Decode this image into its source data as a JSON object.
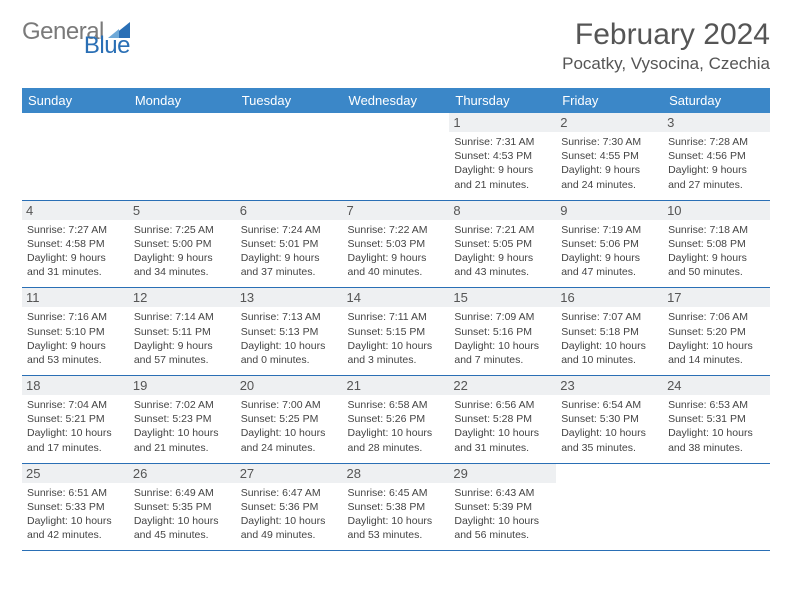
{
  "logo": {
    "text1": "General",
    "text2": "Blue"
  },
  "title": "February 2024",
  "location": "Pocatky, Vysocina, Czechia",
  "colors": {
    "header_bg": "#3b87c8",
    "header_text": "#ffffff",
    "border": "#2a6fb5",
    "daynum_bg": "#eef0f2",
    "text": "#444444",
    "title_text": "#555555",
    "logo_gray": "#7a7a7a",
    "logo_blue": "#2a6fb5"
  },
  "day_headers": [
    "Sunday",
    "Monday",
    "Tuesday",
    "Wednesday",
    "Thursday",
    "Friday",
    "Saturday"
  ],
  "weeks": [
    [
      null,
      null,
      null,
      null,
      {
        "n": "1",
        "sr": "7:31 AM",
        "ss": "4:53 PM",
        "dl": "9 hours and 21 minutes."
      },
      {
        "n": "2",
        "sr": "7:30 AM",
        "ss": "4:55 PM",
        "dl": "9 hours and 24 minutes."
      },
      {
        "n": "3",
        "sr": "7:28 AM",
        "ss": "4:56 PM",
        "dl": "9 hours and 27 minutes."
      }
    ],
    [
      {
        "n": "4",
        "sr": "7:27 AM",
        "ss": "4:58 PM",
        "dl": "9 hours and 31 minutes."
      },
      {
        "n": "5",
        "sr": "7:25 AM",
        "ss": "5:00 PM",
        "dl": "9 hours and 34 minutes."
      },
      {
        "n": "6",
        "sr": "7:24 AM",
        "ss": "5:01 PM",
        "dl": "9 hours and 37 minutes."
      },
      {
        "n": "7",
        "sr": "7:22 AM",
        "ss": "5:03 PM",
        "dl": "9 hours and 40 minutes."
      },
      {
        "n": "8",
        "sr": "7:21 AM",
        "ss": "5:05 PM",
        "dl": "9 hours and 43 minutes."
      },
      {
        "n": "9",
        "sr": "7:19 AM",
        "ss": "5:06 PM",
        "dl": "9 hours and 47 minutes."
      },
      {
        "n": "10",
        "sr": "7:18 AM",
        "ss": "5:08 PM",
        "dl": "9 hours and 50 minutes."
      }
    ],
    [
      {
        "n": "11",
        "sr": "7:16 AM",
        "ss": "5:10 PM",
        "dl": "9 hours and 53 minutes."
      },
      {
        "n": "12",
        "sr": "7:14 AM",
        "ss": "5:11 PM",
        "dl": "9 hours and 57 minutes."
      },
      {
        "n": "13",
        "sr": "7:13 AM",
        "ss": "5:13 PM",
        "dl": "10 hours and 0 minutes."
      },
      {
        "n": "14",
        "sr": "7:11 AM",
        "ss": "5:15 PM",
        "dl": "10 hours and 3 minutes."
      },
      {
        "n": "15",
        "sr": "7:09 AM",
        "ss": "5:16 PM",
        "dl": "10 hours and 7 minutes."
      },
      {
        "n": "16",
        "sr": "7:07 AM",
        "ss": "5:18 PM",
        "dl": "10 hours and 10 minutes."
      },
      {
        "n": "17",
        "sr": "7:06 AM",
        "ss": "5:20 PM",
        "dl": "10 hours and 14 minutes."
      }
    ],
    [
      {
        "n": "18",
        "sr": "7:04 AM",
        "ss": "5:21 PM",
        "dl": "10 hours and 17 minutes."
      },
      {
        "n": "19",
        "sr": "7:02 AM",
        "ss": "5:23 PM",
        "dl": "10 hours and 21 minutes."
      },
      {
        "n": "20",
        "sr": "7:00 AM",
        "ss": "5:25 PM",
        "dl": "10 hours and 24 minutes."
      },
      {
        "n": "21",
        "sr": "6:58 AM",
        "ss": "5:26 PM",
        "dl": "10 hours and 28 minutes."
      },
      {
        "n": "22",
        "sr": "6:56 AM",
        "ss": "5:28 PM",
        "dl": "10 hours and 31 minutes."
      },
      {
        "n": "23",
        "sr": "6:54 AM",
        "ss": "5:30 PM",
        "dl": "10 hours and 35 minutes."
      },
      {
        "n": "24",
        "sr": "6:53 AM",
        "ss": "5:31 PM",
        "dl": "10 hours and 38 minutes."
      }
    ],
    [
      {
        "n": "25",
        "sr": "6:51 AM",
        "ss": "5:33 PM",
        "dl": "10 hours and 42 minutes."
      },
      {
        "n": "26",
        "sr": "6:49 AM",
        "ss": "5:35 PM",
        "dl": "10 hours and 45 minutes."
      },
      {
        "n": "27",
        "sr": "6:47 AM",
        "ss": "5:36 PM",
        "dl": "10 hours and 49 minutes."
      },
      {
        "n": "28",
        "sr": "6:45 AM",
        "ss": "5:38 PM",
        "dl": "10 hours and 53 minutes."
      },
      {
        "n": "29",
        "sr": "6:43 AM",
        "ss": "5:39 PM",
        "dl": "10 hours and 56 minutes."
      },
      null,
      null
    ]
  ],
  "labels": {
    "sunrise": "Sunrise:",
    "sunset": "Sunset:",
    "daylight": "Daylight:"
  }
}
